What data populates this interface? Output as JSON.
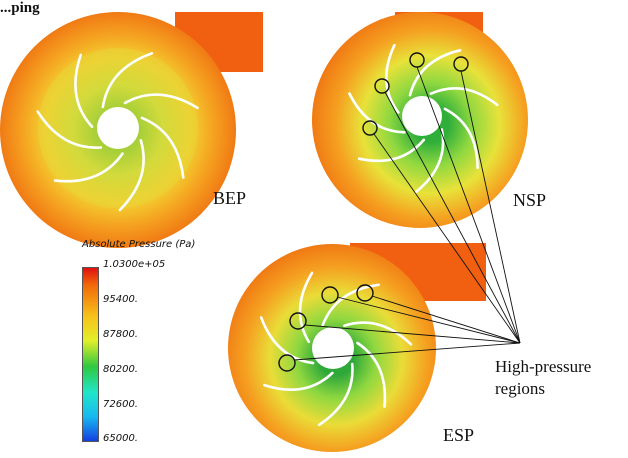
{
  "corner_fragment": "...ping",
  "cases": [
    {
      "id": "bep",
      "label": "BEP"
    },
    {
      "id": "nsp",
      "label": "NSP"
    },
    {
      "id": "esp",
      "label": "ESP"
    }
  ],
  "legend": {
    "title": "Absolute Pressure (Pa)",
    "ticks": [
      "1.0300e+05",
      "95400.",
      "87800.",
      "80200.",
      "72600.",
      "65000."
    ],
    "colors": [
      "#e01010",
      "#f26a0a",
      "#f7c21a",
      "#e2ef2a",
      "#30c840",
      "#20e6c8",
      "#18b8f0",
      "#1440e0"
    ]
  },
  "annotation": {
    "line1": "High-pressure",
    "line2": "regions"
  },
  "colors": {
    "casing_outer": "#f07a14",
    "casing_mid": "#f5a020",
    "impeller_outer": "#f2d030",
    "impeller_inner": "#b8e040",
    "hub_green": "#58c83a",
    "outlet_pipe": "#f06010",
    "blade": "#ffffff"
  }
}
